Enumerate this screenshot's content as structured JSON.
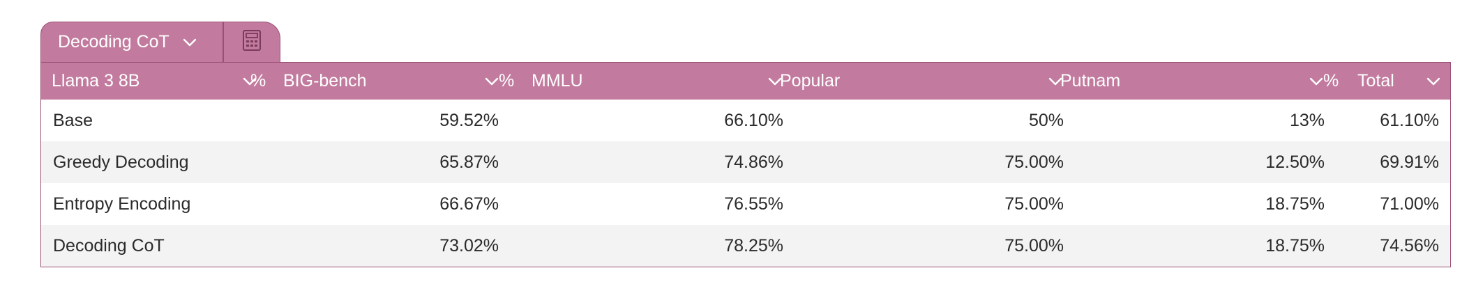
{
  "tabs": {
    "active_label": "Decoding CoT"
  },
  "icons": {
    "tab_dropdown": "chevron-down-icon",
    "calc": "calculator-icon",
    "column_dropdown": "chevron-down-icon"
  },
  "colors": {
    "header_bg": "#c27b9e",
    "border": "#9a4f74",
    "alt_row": "#f3f3f3"
  },
  "table": {
    "columns": [
      {
        "label": "Llama 3 8B"
      },
      {
        "label": "BIG-bench",
        "prefix": "%"
      },
      {
        "label": "MMLU",
        "prefix": "%"
      },
      {
        "label": "Popular"
      },
      {
        "label": "Putnam"
      },
      {
        "label": "Total",
        "prefix": "%"
      }
    ],
    "rows": [
      {
        "name": "Base",
        "bigbench": "59.52%",
        "mmlu": "66.10%",
        "popular": "50%",
        "putnam": "13%",
        "total": "61.10%"
      },
      {
        "name": "Greedy Decoding",
        "bigbench": "65.87%",
        "mmlu": "74.86%",
        "popular": "75.00%",
        "putnam": "12.50%",
        "total": "69.91%"
      },
      {
        "name": "Entropy Encoding",
        "bigbench": "66.67%",
        "mmlu": "76.55%",
        "popular": "75.00%",
        "putnam": "18.75%",
        "total": "71.00%"
      },
      {
        "name": "Decoding CoT",
        "bigbench": "73.02%",
        "mmlu": "78.25%",
        "popular": "75.00%",
        "putnam": "18.75%",
        "total": "74.56%"
      }
    ]
  }
}
